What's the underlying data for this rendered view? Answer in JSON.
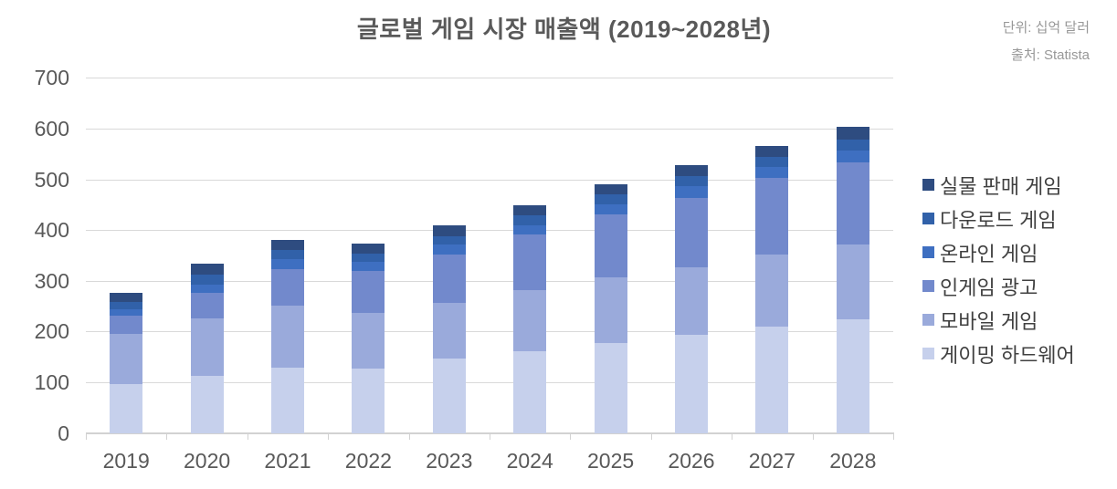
{
  "title": "글로벌 게임 시장 매출액 (2019~2028년)",
  "notes": {
    "unit": "단위: 십억 달러",
    "source": "출처: Statista"
  },
  "chart_data": {
    "type": "bar",
    "stacked": true,
    "title": "글로벌 게임 시장 매출액 (2019~2028년)",
    "unit_label": "단위: 십억 달러",
    "source_label": "출처: Statista",
    "categories": [
      "2019",
      "2020",
      "2021",
      "2022",
      "2023",
      "2024",
      "2025",
      "2026",
      "2027",
      "2028"
    ],
    "series": [
      {
        "name": "게이밍 하드웨어",
        "color": "#c6d0ec",
        "values": [
          97,
          113,
          128,
          127,
          146,
          161,
          178,
          194,
          209,
          225
        ]
      },
      {
        "name": "모바일 게임",
        "color": "#9aaadb",
        "values": [
          99,
          113,
          124,
          109,
          110,
          120,
          128,
          133,
          143,
          147
        ]
      },
      {
        "name": "인게임 광고",
        "color": "#7289cc",
        "values": [
          35,
          50,
          71,
          83,
          96,
          110,
          125,
          137,
          150,
          162
        ]
      },
      {
        "name": "온라인 게임",
        "color": "#3e6fc1",
        "values": [
          13,
          16,
          19,
          18,
          19,
          19,
          20,
          22,
          22,
          23
        ]
      },
      {
        "name": "다운로드 게임",
        "color": "#3161a9",
        "values": [
          15,
          21,
          19,
          17,
          17,
          19,
          19,
          20,
          20,
          22
        ]
      },
      {
        "name": "실물 판매 게임",
        "color": "#2e4c80",
        "values": [
          17,
          21,
          19,
          19,
          21,
          20,
          20,
          22,
          22,
          25
        ]
      }
    ],
    "legend": {
      "position": "right",
      "items_top_down": [
        "실물 판매 게임",
        "다운로드 게임",
        "온라인 게임",
        "인게임 광고",
        "모바일 게임",
        "게이밍 하드웨어"
      ]
    },
    "xlabel": "",
    "ylabel": "",
    "ylim": [
      0,
      700
    ],
    "ytick_step": 100,
    "grid": true,
    "axis_text_color": "#595959",
    "grid_color": "#d9d9d9"
  }
}
